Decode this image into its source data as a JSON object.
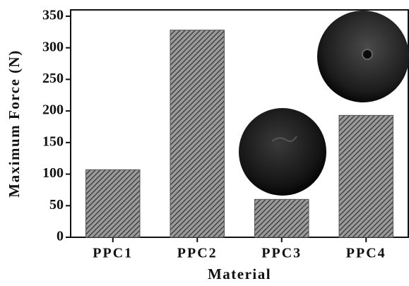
{
  "chart_data": {
    "type": "bar",
    "x_label": "Material",
    "y_label": "Maximum Force (N)",
    "categories": [
      "PPC1",
      "PPC2",
      "PPC3",
      "PPC4"
    ],
    "values": [
      107,
      328,
      60,
      193
    ],
    "color": "#555555",
    "ylim": [
      0,
      360
    ],
    "yticks": [
      0,
      50,
      100,
      150,
      200,
      250,
      300,
      350
    ],
    "grid": false
  }
}
